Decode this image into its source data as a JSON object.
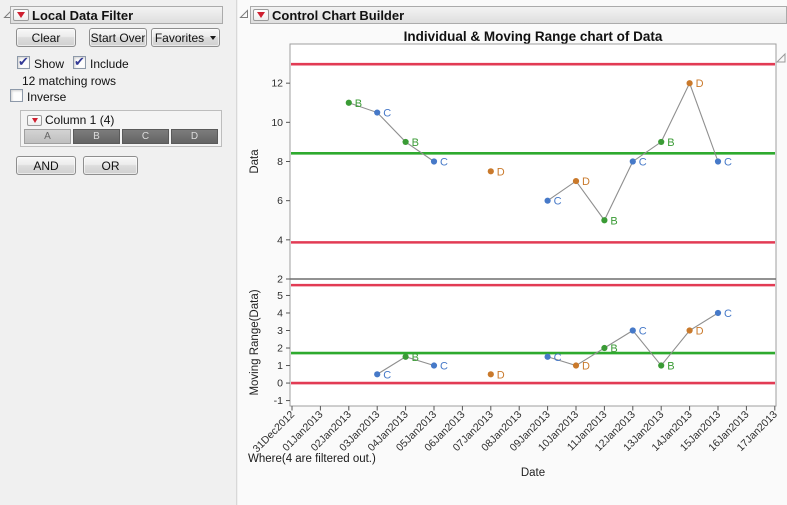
{
  "left_panel": {
    "title": "Local Data Filter",
    "buttons": {
      "clear": "Clear",
      "start_over": "Start Over",
      "favorites": "Favorites"
    },
    "checkboxes": [
      {
        "label": "Show",
        "checked": true
      },
      {
        "label": "Include",
        "checked": true
      },
      {
        "label": "Inverse",
        "checked": false
      }
    ],
    "matching_rows": "12 matching rows",
    "filter_column": {
      "label": "Column 1 (4)",
      "categories": [
        {
          "label": "A",
          "selected": false
        },
        {
          "label": "B",
          "selected": true
        },
        {
          "label": "C",
          "selected": true
        },
        {
          "label": "D",
          "selected": true
        }
      ]
    },
    "logic": {
      "and": "AND",
      "or": "OR"
    }
  },
  "right_panel": {
    "title": "Control Chart Builder",
    "footer": "Where(4 are filtered out.)"
  },
  "chart_data": {
    "type": "line",
    "title": "Individual & Moving Range chart of Data",
    "xlabel": "Date",
    "x_ticks": [
      "31Dec2012",
      "01Jan2013",
      "02Jan2013",
      "03Jan2013",
      "04Jan2013",
      "05Jan2013",
      "06Jan2013",
      "07Jan2013",
      "08Jan2013",
      "09Jan2013",
      "10Jan2013",
      "11Jan2013",
      "12Jan2013",
      "13Jan2013",
      "14Jan2013",
      "15Jan2013",
      "16Jan2013",
      "17Jan2013"
    ],
    "groups": {
      "B": "#3a9b35",
      "C": "#4679c8",
      "D": "#c9792b"
    },
    "style": {
      "limit_color": "#e23b54",
      "center_color": "#2eaa2e",
      "connector_color": "#8f8f8f",
      "frame_color": "#9f9f9f",
      "divider_color": "#6f6f6f",
      "tick_text_color": "#2e2e2e",
      "plot_bg": "#ffffff"
    },
    "panels": [
      {
        "ylabel": "Data",
        "ylim": [
          2,
          14
        ],
        "yticks": [
          2,
          4,
          6,
          8,
          10,
          12
        ],
        "limits": {
          "ucl": 12.97,
          "center": 8.42,
          "lcl": 3.87
        },
        "points": [
          {
            "date": "02Jan2013",
            "day": 2,
            "group": "B",
            "value": 11
          },
          {
            "date": "03Jan2013",
            "day": 3,
            "group": "C",
            "value": 10.5
          },
          {
            "date": "04Jan2013",
            "day": 4,
            "group": "B",
            "value": 9
          },
          {
            "date": "05Jan2013",
            "day": 5,
            "group": "C",
            "value": 8
          },
          {
            "date": "07Jan2013",
            "day": 7,
            "group": "D",
            "value": 7.5
          },
          {
            "date": "09Jan2013",
            "day": 9,
            "group": "C",
            "value": 6
          },
          {
            "date": "10Jan2013",
            "day": 10,
            "group": "D",
            "value": 7
          },
          {
            "date": "11Jan2013",
            "day": 11,
            "group": "B",
            "value": 5
          },
          {
            "date": "12Jan2013",
            "day": 12,
            "group": "C",
            "value": 8
          },
          {
            "date": "13Jan2013",
            "day": 13,
            "group": "B",
            "value": 9
          },
          {
            "date": "14Jan2013",
            "day": 14,
            "group": "D",
            "value": 12
          },
          {
            "date": "15Jan2013",
            "day": 15,
            "group": "C",
            "value": 8
          }
        ],
        "connected_runs": [
          [
            0,
            1,
            2,
            3
          ],
          [
            5,
            6,
            7,
            8,
            9,
            10,
            11
          ]
        ]
      },
      {
        "ylabel": "Moving Range(Data)",
        "ylim": [
          -1.31,
          5.94
        ],
        "yticks": [
          -1,
          0,
          1,
          2,
          3,
          4,
          5
        ],
        "limits": {
          "ucl": 5.59,
          "center": 1.71,
          "lcl": 0
        },
        "points": [
          {
            "date": "03Jan2013",
            "day": 3,
            "group": "C",
            "value": 0.5
          },
          {
            "date": "04Jan2013",
            "day": 4,
            "group": "B",
            "value": 1.5
          },
          {
            "date": "05Jan2013",
            "day": 5,
            "group": "C",
            "value": 1
          },
          {
            "date": "07Jan2013",
            "day": 7,
            "group": "D",
            "value": 0.5
          },
          {
            "date": "09Jan2013",
            "day": 9,
            "group": "C",
            "value": 1.5
          },
          {
            "date": "10Jan2013",
            "day": 10,
            "group": "D",
            "value": 1
          },
          {
            "date": "11Jan2013",
            "day": 11,
            "group": "B",
            "value": 2
          },
          {
            "date": "12Jan2013",
            "day": 12,
            "group": "C",
            "value": 3
          },
          {
            "date": "13Jan2013",
            "day": 13,
            "group": "B",
            "value": 1
          },
          {
            "date": "14Jan2013",
            "day": 14,
            "group": "D",
            "value": 3
          },
          {
            "date": "15Jan2013",
            "day": 15,
            "group": "C",
            "value": 4
          }
        ],
        "connected_runs": [
          [
            0,
            1,
            2
          ],
          [
            4,
            5,
            6,
            7,
            8,
            9,
            10
          ]
        ]
      }
    ]
  }
}
